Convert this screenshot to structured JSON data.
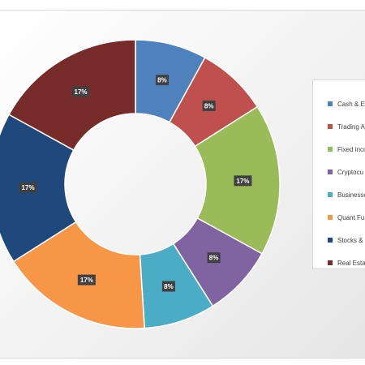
{
  "chart_data": {
    "type": "donut",
    "title": "",
    "colors": [
      "#4f81bd",
      "#c0504d",
      "#9bbb59",
      "#8064a2",
      "#4bacc6",
      "#f79646",
      "#1f497d",
      "#772c2a"
    ],
    "slices": [
      {
        "label": "Cash & Eq",
        "value": 8,
        "data_label": "8%"
      },
      {
        "label": "Trading A",
        "value": 8,
        "data_label": "8%"
      },
      {
        "label": "Fixed inco",
        "value": 17,
        "data_label": "17%"
      },
      {
        "label": "Cryptocu",
        "value": 8,
        "data_label": "8%"
      },
      {
        "label": "Businesse",
        "value": 8,
        "data_label": "8%"
      },
      {
        "label": "Quant Fu",
        "value": 17,
        "data_label": "17%"
      },
      {
        "label": "Stocks &",
        "value": 17,
        "data_label": "17%"
      },
      {
        "label": "Real Esta",
        "value": 17,
        "data_label": "17%"
      }
    ],
    "legend_position": "right"
  }
}
